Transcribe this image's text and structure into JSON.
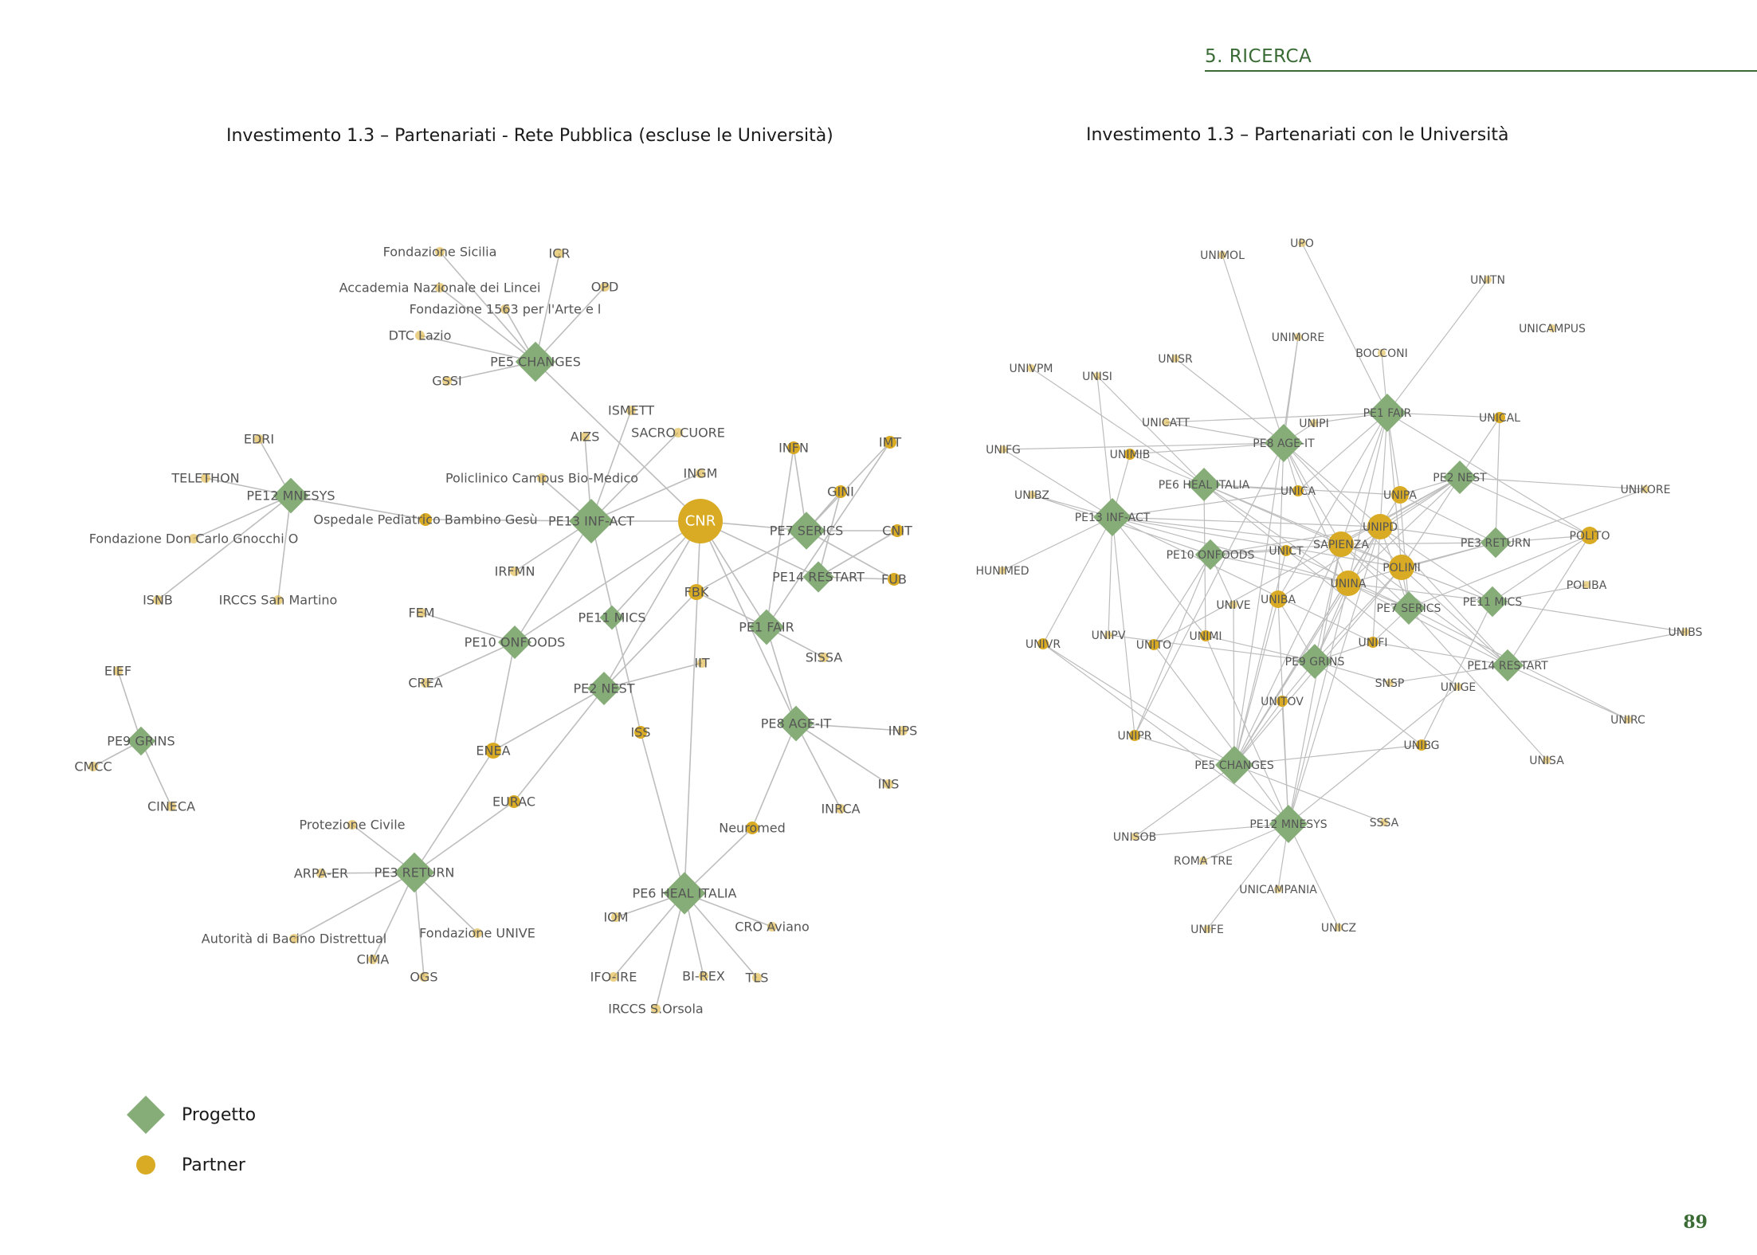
{
  "header": {
    "section": "5. RICERCA"
  },
  "colors": {
    "project": "#86ad78",
    "partner": "#d9ab24",
    "edge": "#bdbdbd",
    "accent": "#3a6b35",
    "label": "#555555"
  },
  "left_chart": {
    "title": "Investimento 1.3 – Partenariati - Rete Pubblica (escluse le Università)",
    "projects": [
      "PE5 CHANGES",
      "PE12 MNESYS",
      "PE13 INF-ACT",
      "PE7 SERICS",
      "PE14 RESTART",
      "PE11 MICS",
      "PE1 FAIR",
      "PE10 ONFOODS",
      "PE2 NEST",
      "PE9 GRINS",
      "PE8 AGE-IT",
      "PE3 RETURN",
      "PE6 HEAL ITALIA"
    ],
    "partners": [
      "Fondazione Sicilia",
      "ICR",
      "Accademia Nazionale dei Lincei",
      "OPD",
      "Fondazione 1563 per l'Arte e l",
      "DTC Lazio",
      "GSSI",
      "ISMETT",
      "AIZS",
      "SACRO CUORE",
      "EDRI",
      "INFN",
      "IMT",
      "TELETHON",
      "Policlinico Campus Bio-Medico",
      "INGM",
      "GINI",
      "Ospedale Pediatrico Bambino Gesù",
      "CNR",
      "CNIT",
      "Fondazione Don Carlo Gnocchi O",
      "FUB",
      "IRFMN",
      "FBK",
      "ISNB",
      "IRCCS San Martino",
      "FEM",
      "SISSA",
      "EIEF",
      "CREA",
      "IIT",
      "INPS",
      "CMCC",
      "ENEA",
      "INS",
      "CINECA",
      "EURAC",
      "INRCA",
      "Protezione Civile",
      "Neuromed",
      "ISS",
      "ARPA-ER",
      "Autorità di Bacino Distrettual",
      "Fondazione UNIVE",
      "IOM",
      "CRO Aviano",
      "CIMA",
      "OGS",
      "IFO-IRE",
      "BI-REX",
      "TLS",
      "IRCCS S.Orsola"
    ],
    "edges": [
      [
        "PE5 CHANGES",
        "Fondazione Sicilia"
      ],
      [
        "PE5 CHANGES",
        "ICR"
      ],
      [
        "PE5 CHANGES",
        "Accademia Nazionale dei Lincei"
      ],
      [
        "PE5 CHANGES",
        "OPD"
      ],
      [
        "PE5 CHANGES",
        "Fondazione 1563 per l'Arte e l"
      ],
      [
        "PE5 CHANGES",
        "DTC Lazio"
      ],
      [
        "PE5 CHANGES",
        "GSSI"
      ],
      [
        "PE5 CHANGES",
        "CNR"
      ],
      [
        "PE12 MNESYS",
        "EDRI"
      ],
      [
        "PE12 MNESYS",
        "TELETHON"
      ],
      [
        "PE12 MNESYS",
        "Fondazione Don Carlo Gnocchi O"
      ],
      [
        "PE12 MNESYS",
        "ISNB"
      ],
      [
        "PE12 MNESYS",
        "IRCCS San Martino"
      ],
      [
        "PE12 MNESYS",
        "Ospedale Pediatrico Bambino Gesù"
      ],
      [
        "PE13 INF-ACT",
        "ISMETT"
      ],
      [
        "PE13 INF-ACT",
        "AIZS"
      ],
      [
        "PE13 INF-ACT",
        "SACRO CUORE"
      ],
      [
        "PE13 INF-ACT",
        "Policlinico Campus Bio-Medico"
      ],
      [
        "PE13 INF-ACT",
        "INGM"
      ],
      [
        "PE13 INF-ACT",
        "Ospedale Pediatrico Bambino Gesù"
      ],
      [
        "PE13 INF-ACT",
        "CNR"
      ],
      [
        "PE13 INF-ACT",
        "IRFMN"
      ],
      [
        "PE13 INF-ACT",
        "ISS"
      ],
      [
        "PE13 INF-ACT",
        "PE10 ONFOODS"
      ],
      [
        "PE7 SERICS",
        "INFN"
      ],
      [
        "PE7 SERICS",
        "IMT"
      ],
      [
        "PE7 SERICS",
        "GINI"
      ],
      [
        "PE7 SERICS",
        "CNIT"
      ],
      [
        "PE7 SERICS",
        "FUB"
      ],
      [
        "PE7 SERICS",
        "CNR"
      ],
      [
        "PE7 SERICS",
        "FBK"
      ],
      [
        "PE14 RESTART",
        "CNIT"
      ],
      [
        "PE14 RESTART",
        "FUB"
      ],
      [
        "PE14 RESTART",
        "GINI"
      ],
      [
        "PE14 RESTART",
        "CNR"
      ],
      [
        "PE1 FAIR",
        "CNR"
      ],
      [
        "PE1 FAIR",
        "FBK"
      ],
      [
        "PE1 FAIR",
        "INFN"
      ],
      [
        "PE1 FAIR",
        "IMT"
      ],
      [
        "PE1 FAIR",
        "SISSA"
      ],
      [
        "PE1 FAIR",
        "PE8 AGE-IT"
      ],
      [
        "PE11 MICS",
        "CNR"
      ],
      [
        "PE10 ONFOODS",
        "FEM"
      ],
      [
        "PE10 ONFOODS",
        "CREA"
      ],
      [
        "PE10 ONFOODS",
        "ENEA"
      ],
      [
        "PE10 ONFOODS",
        "CNR"
      ],
      [
        "PE2 NEST",
        "CNR"
      ],
      [
        "PE2 NEST",
        "FBK"
      ],
      [
        "PE2 NEST",
        "IIT"
      ],
      [
        "PE2 NEST",
        "ENEA"
      ],
      [
        "PE2 NEST",
        "EURAC"
      ],
      [
        "PE9 GRINS",
        "EIEF"
      ],
      [
        "PE9 GRINS",
        "CMCC"
      ],
      [
        "PE9 GRINS",
        "CINECA"
      ],
      [
        "PE8 AGE-IT",
        "INPS"
      ],
      [
        "PE8 AGE-IT",
        "INS"
      ],
      [
        "PE8 AGE-IT",
        "INRCA"
      ],
      [
        "PE8 AGE-IT",
        "Neuromed"
      ],
      [
        "PE8 AGE-IT",
        "CNR"
      ],
      [
        "PE3 RETURN",
        "ENEA"
      ],
      [
        "PE3 RETURN",
        "EURAC"
      ],
      [
        "PE3 RETURN",
        "Protezione Civile"
      ],
      [
        "PE3 RETURN",
        "ARPA-ER"
      ],
      [
        "PE3 RETURN",
        "Autorità di Bacino Distrettual"
      ],
      [
        "PE3 RETURN",
        "Fondazione UNIVE"
      ],
      [
        "PE3 RETURN",
        "CIMA"
      ],
      [
        "PE3 RETURN",
        "OGS"
      ],
      [
        "PE6 HEAL ITALIA",
        "ISS"
      ],
      [
        "PE6 HEAL ITALIA",
        "Neuromed"
      ],
      [
        "PE6 HEAL ITALIA",
        "IOM"
      ],
      [
        "PE6 HEAL ITALIA",
        "CRO Aviano"
      ],
      [
        "PE6 HEAL ITALIA",
        "IFO-IRE"
      ],
      [
        "PE6 HEAL ITALIA",
        "BI-REX"
      ],
      [
        "PE6 HEAL ITALIA",
        "TLS"
      ],
      [
        "PE6 HEAL ITALIA",
        "IRCCS S.Orsola"
      ],
      [
        "PE6 HEAL ITALIA",
        "CNR"
      ]
    ]
  },
  "right_chart": {
    "title": "Investimento 1.3 – Partenariati con le Università",
    "projects": [
      "PE1 FAIR",
      "PE8 AGE-IT",
      "PE6 HEAL ITALIA",
      "PE2 NEST",
      "PE13 INF-ACT",
      "PE10 ONFOODS",
      "PE3 RETURN",
      "PE11 MICS",
      "PE7 SERICS",
      "PE14 RESTART",
      "PE9 GRINS",
      "PE5 CHANGES",
      "PE12 MNESYS"
    ],
    "partners": [
      "UNIMOL",
      "UPO",
      "UNITN",
      "UNICAMPUS",
      "UNIMORE",
      "BOCCONI",
      "UNISR",
      "UNIVPM",
      "UNISI",
      "UNICATT",
      "UNIPI",
      "UNICAL",
      "UNIFG",
      "UNIMIB",
      "UNIKORE",
      "UNIBZ",
      "UNICA",
      "UNIPA",
      "UNIPD",
      "SAPIENZA",
      "POLITO",
      "UNICT",
      "POLIMI",
      "HUNIMED",
      "UNINA",
      "POLIBA",
      "UNIVE",
      "UNIBA",
      "UNIBS",
      "UNIVR",
      "UNIPV",
      "UNITO",
      "UNIMI",
      "UNIFI",
      "SNSP",
      "UNIGE",
      "UNITOV",
      "UNIRC",
      "UNIPR",
      "UNIBG",
      "UNISA",
      "UNISOB",
      "SSSA",
      "ROMA TRE",
      "UNICAMPANIA",
      "UNIFE",
      "UNICZ"
    ],
    "edges": [
      [
        "PE1 FAIR",
        "UPO"
      ],
      [
        "PE1 FAIR",
        "UNITN"
      ],
      [
        "PE1 FAIR",
        "BOCCONI"
      ],
      [
        "PE1 FAIR",
        "UNICAL"
      ],
      [
        "PE1 FAIR",
        "UNIPI"
      ],
      [
        "PE1 FAIR",
        "UNIPA"
      ],
      [
        "PE1 FAIR",
        "SAPIENZA"
      ],
      [
        "PE1 FAIR",
        "POLIMI"
      ],
      [
        "PE1 FAIR",
        "UNINA"
      ],
      [
        "PE1 FAIR",
        "UNIBA"
      ],
      [
        "PE1 FAIR",
        "UNICA"
      ],
      [
        "PE1 FAIR",
        "UNIFI"
      ],
      [
        "PE1 FAIR",
        "POLITO"
      ],
      [
        "PE1 FAIR",
        "UNICATT"
      ],
      [
        "PE8 AGE-IT",
        "UNIMOL"
      ],
      [
        "PE8 AGE-IT",
        "UNIMORE"
      ],
      [
        "PE8 AGE-IT",
        "UNISR"
      ],
      [
        "PE8 AGE-IT",
        "UNICATT"
      ],
      [
        "PE8 AGE-IT",
        "UNIPI"
      ],
      [
        "PE8 AGE-IT",
        "UNIMIB"
      ],
      [
        "PE8 AGE-IT",
        "UNICA"
      ],
      [
        "PE8 AGE-IT",
        "SAPIENZA"
      ],
      [
        "PE8 AGE-IT",
        "UNIPD"
      ],
      [
        "PE8 AGE-IT",
        "UNINA"
      ],
      [
        "PE8 AGE-IT",
        "POLIMI"
      ],
      [
        "PE8 AGE-IT",
        "UNIFG"
      ],
      [
        "PE8 AGE-IT",
        "UNIBA"
      ],
      [
        "PE8 AGE-IT",
        "UNIPR"
      ],
      [
        "PE6 HEAL ITALIA",
        "UNISI"
      ],
      [
        "PE6 HEAL ITALIA",
        "UNIVPM"
      ],
      [
        "PE6 HEAL ITALIA",
        "UNIMIB"
      ],
      [
        "PE6 HEAL ITALIA",
        "UNICA"
      ],
      [
        "PE6 HEAL ITALIA",
        "SAPIENZA"
      ],
      [
        "PE6 HEAL ITALIA",
        "UNINA"
      ],
      [
        "PE6 HEAL ITALIA",
        "UNIPA"
      ],
      [
        "PE6 HEAL ITALIA",
        "UNIMI"
      ],
      [
        "PE6 HEAL ITALIA",
        "UNIGE"
      ],
      [
        "PE6 HEAL ITALIA",
        "POLIMI"
      ],
      [
        "PE2 NEST",
        "UNIKORE"
      ],
      [
        "PE2 NEST",
        "UNICAL"
      ],
      [
        "PE2 NEST",
        "SAPIENZA"
      ],
      [
        "PE2 NEST",
        "UNIPA"
      ],
      [
        "PE2 NEST",
        "POLITO"
      ],
      [
        "PE2 NEST",
        "UNINA"
      ],
      [
        "PE2 NEST",
        "UNIPD"
      ],
      [
        "PE2 NEST",
        "UNIBA"
      ],
      [
        "PE2 NEST",
        "UNITO"
      ],
      [
        "PE2 NEST",
        "POLIMI"
      ],
      [
        "PE13 INF-ACT",
        "UNIFG"
      ],
      [
        "PE13 INF-ACT",
        "UNIBZ"
      ],
      [
        "PE13 INF-ACT",
        "HUNIMED"
      ],
      [
        "PE13 INF-ACT",
        "UNIVR"
      ],
      [
        "PE13 INF-ACT",
        "UNIPV"
      ],
      [
        "PE13 INF-ACT",
        "UNISI"
      ],
      [
        "PE13 INF-ACT",
        "UNICA"
      ],
      [
        "PE13 INF-ACT",
        "SAPIENZA"
      ],
      [
        "PE13 INF-ACT",
        "UNIPD"
      ],
      [
        "PE13 INF-ACT",
        "UNINA"
      ],
      [
        "PE13 INF-ACT",
        "UNIMI"
      ],
      [
        "PE13 INF-ACT",
        "UNIMIB"
      ],
      [
        "PE13 INF-ACT",
        "UNIPR"
      ],
      [
        "PE13 INF-ACT",
        "UNIFI"
      ],
      [
        "PE13 INF-ACT",
        "POLIMI"
      ],
      [
        "PE10 ONFOODS",
        "UNIBZ"
      ],
      [
        "PE10 ONFOODS",
        "UNICT"
      ],
      [
        "PE10 ONFOODS",
        "UNIPD"
      ],
      [
        "PE10 ONFOODS",
        "UNIVE"
      ],
      [
        "PE10 ONFOODS",
        "UNIPR"
      ],
      [
        "PE10 ONFOODS",
        "UNITO"
      ],
      [
        "PE10 ONFOODS",
        "SAPIENZA"
      ],
      [
        "PE10 ONFOODS",
        "UNINA"
      ],
      [
        "PE3 RETURN",
        "POLITO"
      ],
      [
        "PE3 RETURN",
        "UNIPA"
      ],
      [
        "PE3 RETURN",
        "UNICAL"
      ],
      [
        "PE3 RETURN",
        "POLIMI"
      ],
      [
        "PE3 RETURN",
        "UNINA"
      ],
      [
        "PE3 RETURN",
        "SAPIENZA"
      ],
      [
        "PE3 RETURN",
        "UNIPD"
      ],
      [
        "PE3 RETURN",
        "UNIKORE"
      ],
      [
        "PE11 MICS",
        "POLIBA"
      ],
      [
        "PE11 MICS",
        "POLITO"
      ],
      [
        "PE11 MICS",
        "POLIMI"
      ],
      [
        "PE11 MICS",
        "UNINA"
      ],
      [
        "PE11 MICS",
        "SAPIENZA"
      ],
      [
        "PE11 MICS",
        "UNIBS"
      ],
      [
        "PE11 MICS",
        "UNIPD"
      ],
      [
        "PE11 MICS",
        "UNIBG"
      ],
      [
        "PE7 SERICS",
        "POLIMI"
      ],
      [
        "PE7 SERICS",
        "UNINA"
      ],
      [
        "PE7 SERICS",
        "SAPIENZA"
      ],
      [
        "PE7 SERICS",
        "UNIFI"
      ],
      [
        "PE7 SERICS",
        "UNICT"
      ],
      [
        "PE7 SERICS",
        "POLITO"
      ],
      [
        "PE7 SERICS",
        "UNIPD"
      ],
      [
        "PE7 SERICS",
        "UNIPA"
      ],
      [
        "PE7 SERICS",
        "UNISA"
      ],
      [
        "PE7 SERICS",
        "UNIRC"
      ],
      [
        "PE14 RESTART",
        "POLITO"
      ],
      [
        "PE14 RESTART",
        "UNIRC"
      ],
      [
        "PE14 RESTART",
        "POLIMI"
      ],
      [
        "PE14 RESTART",
        "UNINA"
      ],
      [
        "PE14 RESTART",
        "SAPIENZA"
      ],
      [
        "PE14 RESTART",
        "UNIFI"
      ],
      [
        "PE14 RESTART",
        "UNIBS"
      ],
      [
        "PE14 RESTART",
        "UNIPD"
      ],
      [
        "PE14 RESTART",
        "SNSP"
      ],
      [
        "PE9 GRINS",
        "UNIBA"
      ],
      [
        "PE9 GRINS",
        "UNINA"
      ],
      [
        "PE9 GRINS",
        "SAPIENZA"
      ],
      [
        "PE9 GRINS",
        "SNSP"
      ],
      [
        "PE9 GRINS",
        "UNITOV"
      ],
      [
        "PE9 GRINS",
        "UNIBG"
      ],
      [
        "PE9 GRINS",
        "UNIPD"
      ],
      [
        "PE9 GRINS",
        "UNIPV"
      ],
      [
        "PE9 GRINS",
        "UNIMI"
      ],
      [
        "PE9 GRINS",
        "UNIFI"
      ],
      [
        "PE9 GRINS",
        "POLIMI"
      ],
      [
        "PE5 CHANGES",
        "UNIPR"
      ],
      [
        "PE5 CHANGES",
        "UNISOB"
      ],
      [
        "PE5 CHANGES",
        "SSSA"
      ],
      [
        "PE5 CHANGES",
        "UNIBG"
      ],
      [
        "PE5 CHANGES",
        "UNIPD"
      ],
      [
        "PE5 CHANGES",
        "SAPIENZA"
      ],
      [
        "PE5 CHANGES",
        "UNINA"
      ],
      [
        "PE5 CHANGES",
        "UNIBA"
      ],
      [
        "PE5 CHANGES",
        "UNIVE"
      ],
      [
        "PE5 CHANGES",
        "UNITOV"
      ],
      [
        "PE5 CHANGES",
        "UNICT"
      ],
      [
        "PE5 CHANGES",
        "POLIMI"
      ],
      [
        "PE5 CHANGES",
        "UNIPA"
      ],
      [
        "PE5 CHANGES",
        "UNIVR"
      ],
      [
        "PE5 CHANGES",
        "UNIMORE"
      ],
      [
        "PE12 MNESYS",
        "ROMA TRE"
      ],
      [
        "PE12 MNESYS",
        "UNICAMPANIA"
      ],
      [
        "PE12 MNESYS",
        "UNIFE"
      ],
      [
        "PE12 MNESYS",
        "UNICZ"
      ],
      [
        "PE12 MNESYS",
        "UNISOB"
      ],
      [
        "PE12 MNESYS",
        "UNITOV"
      ],
      [
        "PE12 MNESYS",
        "SAPIENZA"
      ],
      [
        "PE12 MNESYS",
        "UNINA"
      ],
      [
        "PE12 MNESYS",
        "UNIGE"
      ],
      [
        "PE12 MNESYS",
        "UNIBA"
      ],
      [
        "PE12 MNESYS",
        "UNIPD"
      ],
      [
        "PE12 MNESYS",
        "UNITO"
      ],
      [
        "PE12 MNESYS",
        "UNIVR"
      ],
      [
        "PE12 MNESYS",
        "UNIMI"
      ]
    ]
  },
  "legend": {
    "project_label": "Progetto",
    "partner_label": "Partner"
  },
  "footer": {
    "page_number": "89"
  }
}
